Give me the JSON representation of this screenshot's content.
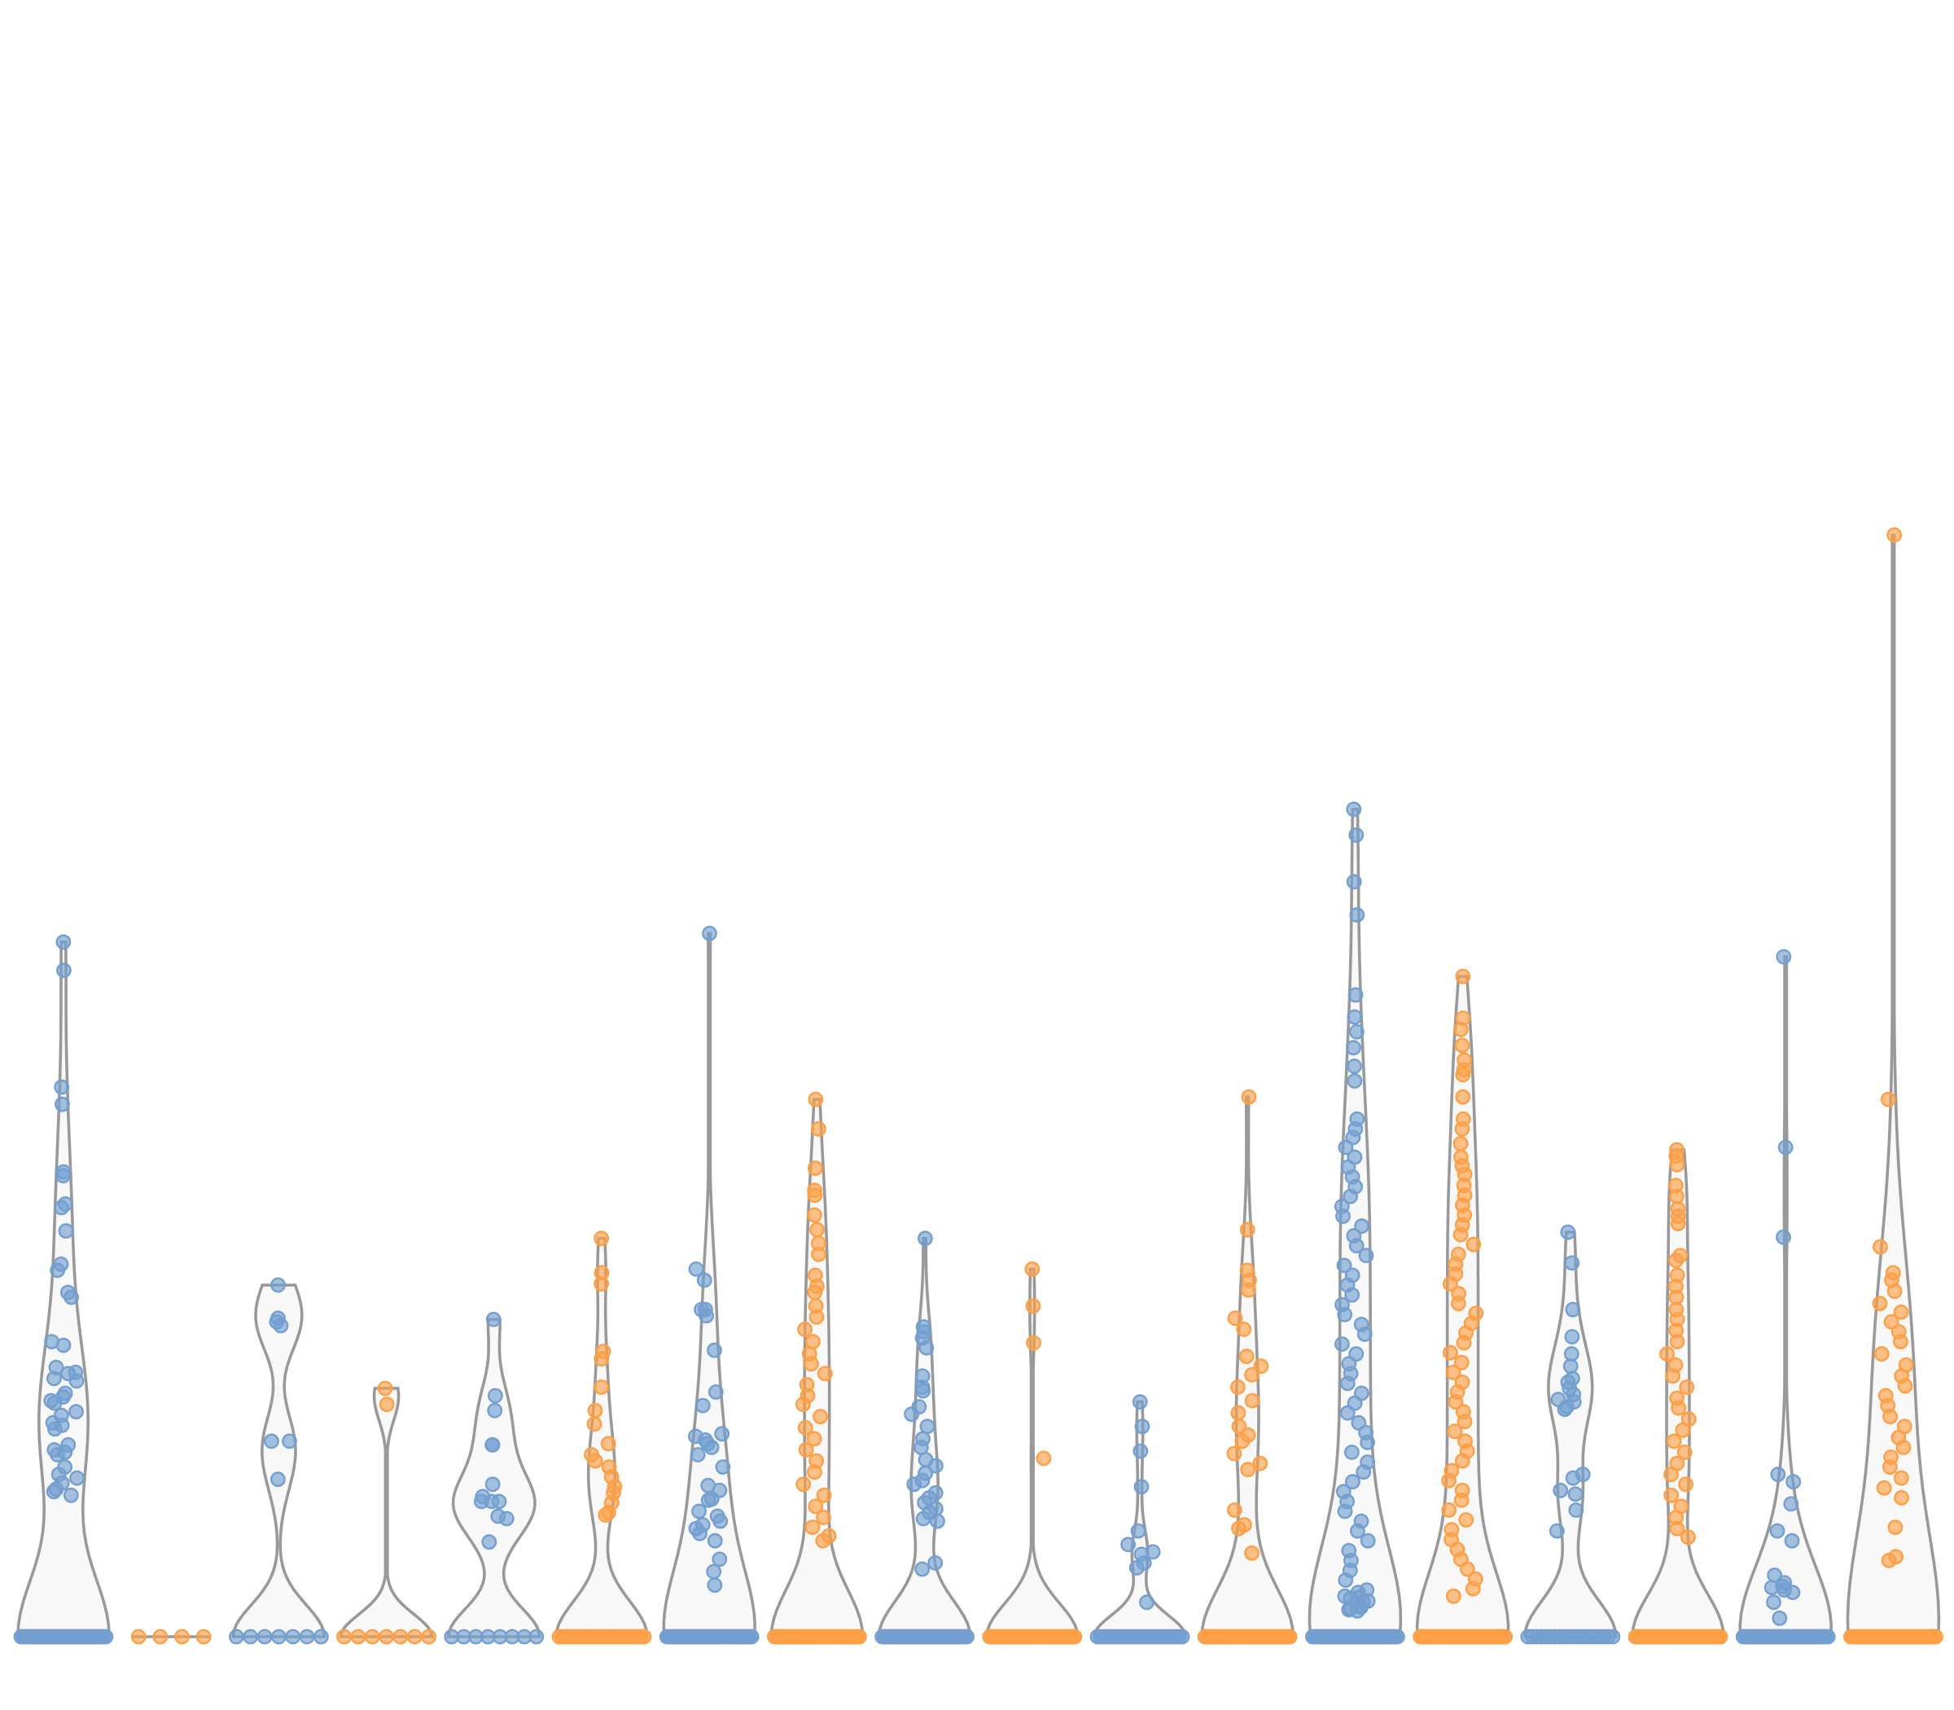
{
  "chart_data": {
    "type": "violin",
    "title": "",
    "xlabel": "",
    "ylabel": "",
    "ylim": [
      0,
      100
    ],
    "grid": false,
    "legend": "none",
    "colors": {
      "blue": "#739fd0",
      "orange": "#fd9f46",
      "violin_stroke": "#999999",
      "violin_fill": "#f8f8f8"
    },
    "series": [
      {
        "color": "blue",
        "max": 56.5,
        "zero_count": 40,
        "values": [
          56.5,
          54.2,
          44.7,
          43.3,
          37.5,
          37.8,
          34.9,
          35.2,
          33.0,
          30.3,
          29.8,
          27.6,
          28.0,
          24.0,
          23.7,
          21.9,
          21.4,
          21.0,
          19.8,
          19.5,
          19.0,
          19.2,
          21.5,
          20.8,
          17.4,
          17.2,
          18.3,
          16.9,
          18.0,
          15.0,
          15.6,
          14.8,
          15.2,
          12.9,
          12.5,
          12.0,
          13.8,
          13.2,
          11.8,
          11.5
        ]
      },
      {
        "color": "orange",
        "max": 0,
        "zero_count": 4,
        "values": []
      },
      {
        "color": "blue",
        "max": 28.6,
        "zero_count": 7,
        "values": [
          28.6,
          25.9,
          25.6,
          25.3,
          15.9,
          15.9,
          12.8
        ]
      },
      {
        "color": "orange",
        "max": 20.2,
        "zero_count": 7,
        "values": [
          20.2,
          18.9
        ]
      },
      {
        "color": "blue",
        "max": 25.8,
        "zero_count": 8,
        "values": [
          25.8,
          19.6,
          18.4,
          15.6,
          15.6,
          12.4,
          11.4,
          11.0,
          11.0,
          11.0,
          9.8,
          9.6,
          7.7
        ]
      },
      {
        "color": "orange",
        "max": 32.4,
        "zero_count": 30,
        "values": [
          32.4,
          29.6,
          28.7,
          23.2,
          22.6,
          20.3,
          18.4,
          17.3,
          15.7,
          14.8,
          14.3,
          13.8,
          13.0,
          12.2,
          11.7,
          10.9,
          10.1,
          9.9
        ]
      },
      {
        "color": "blue",
        "max": 57.2,
        "zero_count": 40,
        "values": [
          57.2,
          29.9,
          29.0,
          26.6,
          26.6,
          26.1,
          23.3,
          19.9,
          18.8,
          16.5,
          16.3,
          16.0,
          15.4,
          15.7,
          14.8,
          13.8,
          12.3,
          11.9,
          11.2,
          11.1,
          10.2,
          9.8,
          9.4,
          9.1,
          8.8,
          8.4,
          7.8,
          4.2,
          5.3,
          6.3
        ]
      },
      {
        "color": "orange",
        "max": 43.7,
        "zero_count": 40,
        "values": [
          43.7,
          41.3,
          38.1,
          36.3,
          35.9,
          34.3,
          33.1,
          32.0,
          31.1,
          29.4,
          28.5,
          28.0,
          26.9,
          26.0,
          25.0,
          24.0,
          23.0,
          22.2,
          21.4,
          20.5,
          19.6,
          18.9,
          17.9,
          17.0,
          16.1,
          15.2,
          14.3,
          13.4,
          12.4,
          11.5,
          10.6,
          9.7,
          8.9,
          8.2,
          7.8
        ]
      },
      {
        "color": "blue",
        "max": 32.4,
        "zero_count": 40,
        "values": [
          32.4,
          25.2,
          24.8,
          24.3,
          23.5,
          21.2,
          20.3,
          20.0,
          18.7,
          18.1,
          17.1,
          16.1,
          15.4,
          14.4,
          13.9,
          13.3,
          12.7,
          12.4,
          11.7,
          11.3,
          10.9,
          10.4,
          10.1,
          9.6,
          9.4,
          6.0,
          5.5
        ]
      },
      {
        "color": "orange",
        "max": 29.9,
        "zero_count": 40,
        "values": [
          29.9,
          26.9,
          23.9,
          14.5
        ]
      },
      {
        "color": "blue",
        "max": 19.1,
        "zero_count": 30,
        "values": [
          19.1,
          17.1,
          15.1,
          12.2,
          8.6,
          7.5,
          6.9,
          6.7,
          6.0,
          5.6,
          2.8
        ]
      },
      {
        "color": "orange",
        "max": 43.9,
        "zero_count": 40,
        "values": [
          43.9,
          33.1,
          29.8,
          29.0,
          28.2,
          25.9,
          25.0,
          22.8,
          22.0,
          21.3,
          20.3,
          19.2,
          18.2,
          17.1,
          16.4,
          15.9,
          14.9,
          14.1,
          13.6,
          10.3,
          9.1,
          8.8,
          6.8
        ]
      },
      {
        "color": "blue",
        "max": 67.3,
        "zero_count": 40,
        "values": [
          67.3,
          65.2,
          61.4,
          58.7,
          52.2,
          50.4,
          49.2,
          47.9,
          46.4,
          45.2,
          42.1,
          41.3,
          40.6,
          39.8,
          39.0,
          38.2,
          37.4,
          36.6,
          35.8,
          35.0,
          34.2,
          33.4,
          32.6,
          31.8,
          31.0,
          30.2,
          29.4,
          28.6,
          27.8,
          27.0,
          26.2,
          25.4,
          24.6,
          23.8,
          23.0,
          22.2,
          21.4,
          20.6,
          19.8,
          19.0,
          18.2,
          17.4,
          16.6,
          15.8,
          15.0,
          14.2,
          13.4,
          12.6,
          11.8,
          11.0,
          10.2,
          9.4,
          8.6,
          7.8,
          7.0,
          6.2,
          5.4,
          4.6,
          3.8,
          3.2,
          2.8,
          2.4,
          2.2,
          2.1,
          3.3,
          2.5,
          2.9,
          3.6,
          2.3,
          3.1
        ]
      },
      {
        "color": "orange",
        "max": 53.7,
        "zero_count": 40,
        "values": [
          53.7,
          50.3,
          49.4,
          48.1,
          46.9,
          46.1,
          45.7,
          43.9,
          42.1,
          41.3,
          40.1,
          39.0,
          38.3,
          37.6,
          36.7,
          35.9,
          35.1,
          34.3,
          33.5,
          32.7,
          31.9,
          31.1,
          30.3,
          29.5,
          28.7,
          27.9,
          27.1,
          26.3,
          25.5,
          24.7,
          23.9,
          23.1,
          22.3,
          21.5,
          20.7,
          19.9,
          19.1,
          18.3,
          17.5,
          16.7,
          15.9,
          15.1,
          14.3,
          13.5,
          12.7,
          11.9,
          11.1,
          10.3,
          9.5,
          8.7,
          7.9,
          7.1,
          6.3,
          5.5,
          4.7,
          3.9,
          3.3
        ]
      },
      {
        "color": "blue",
        "max": 32.9,
        "zero_count": 20,
        "values": [
          32.9,
          30.4,
          26.6,
          24.4,
          23.0,
          22.0,
          21.0,
          20.7,
          20.2,
          19.7,
          19.3,
          19.1,
          18.7,
          18.5,
          13.2,
          12.9,
          11.9,
          11.6,
          10.3,
          8.6
        ]
      },
      {
        "color": "orange",
        "max": 39.6,
        "zero_count": 40,
        "values": [
          39.6,
          39.1,
          38.4,
          36.7,
          35.8,
          34.8,
          34.2,
          33.6,
          31.0,
          30.6,
          29.4,
          28.5,
          27.6,
          26.6,
          25.8,
          24.9,
          24.0,
          23.0,
          22.1,
          21.2,
          20.3,
          19.4,
          18.6,
          17.7,
          16.8,
          15.9,
          15.0,
          14.1,
          13.2,
          12.4,
          11.5,
          10.6,
          9.7,
          8.8,
          8.1
        ]
      },
      {
        "color": "blue",
        "max": 55.3,
        "zero_count": 40,
        "values": [
          55.3,
          39.8,
          32.5,
          13.2,
          12.6,
          10.8,
          8.6,
          7.8,
          5.0,
          4.4,
          3.6,
          2.8,
          4.1,
          1.5,
          4.0,
          3.8
        ]
      },
      {
        "color": "orange",
        "max": 89.6,
        "zero_count": 40,
        "values": [
          89.6,
          43.7,
          31.7,
          29.6,
          29.0,
          28.1,
          27.1,
          26.4,
          25.6,
          24.8,
          24.0,
          23.0,
          22.1,
          21.2,
          20.4,
          19.6,
          18.8,
          17.9,
          17.1,
          16.2,
          15.4,
          14.6,
          13.8,
          12.9,
          12.1,
          11.3,
          8.9,
          6.5,
          6.2
        ]
      }
    ]
  }
}
